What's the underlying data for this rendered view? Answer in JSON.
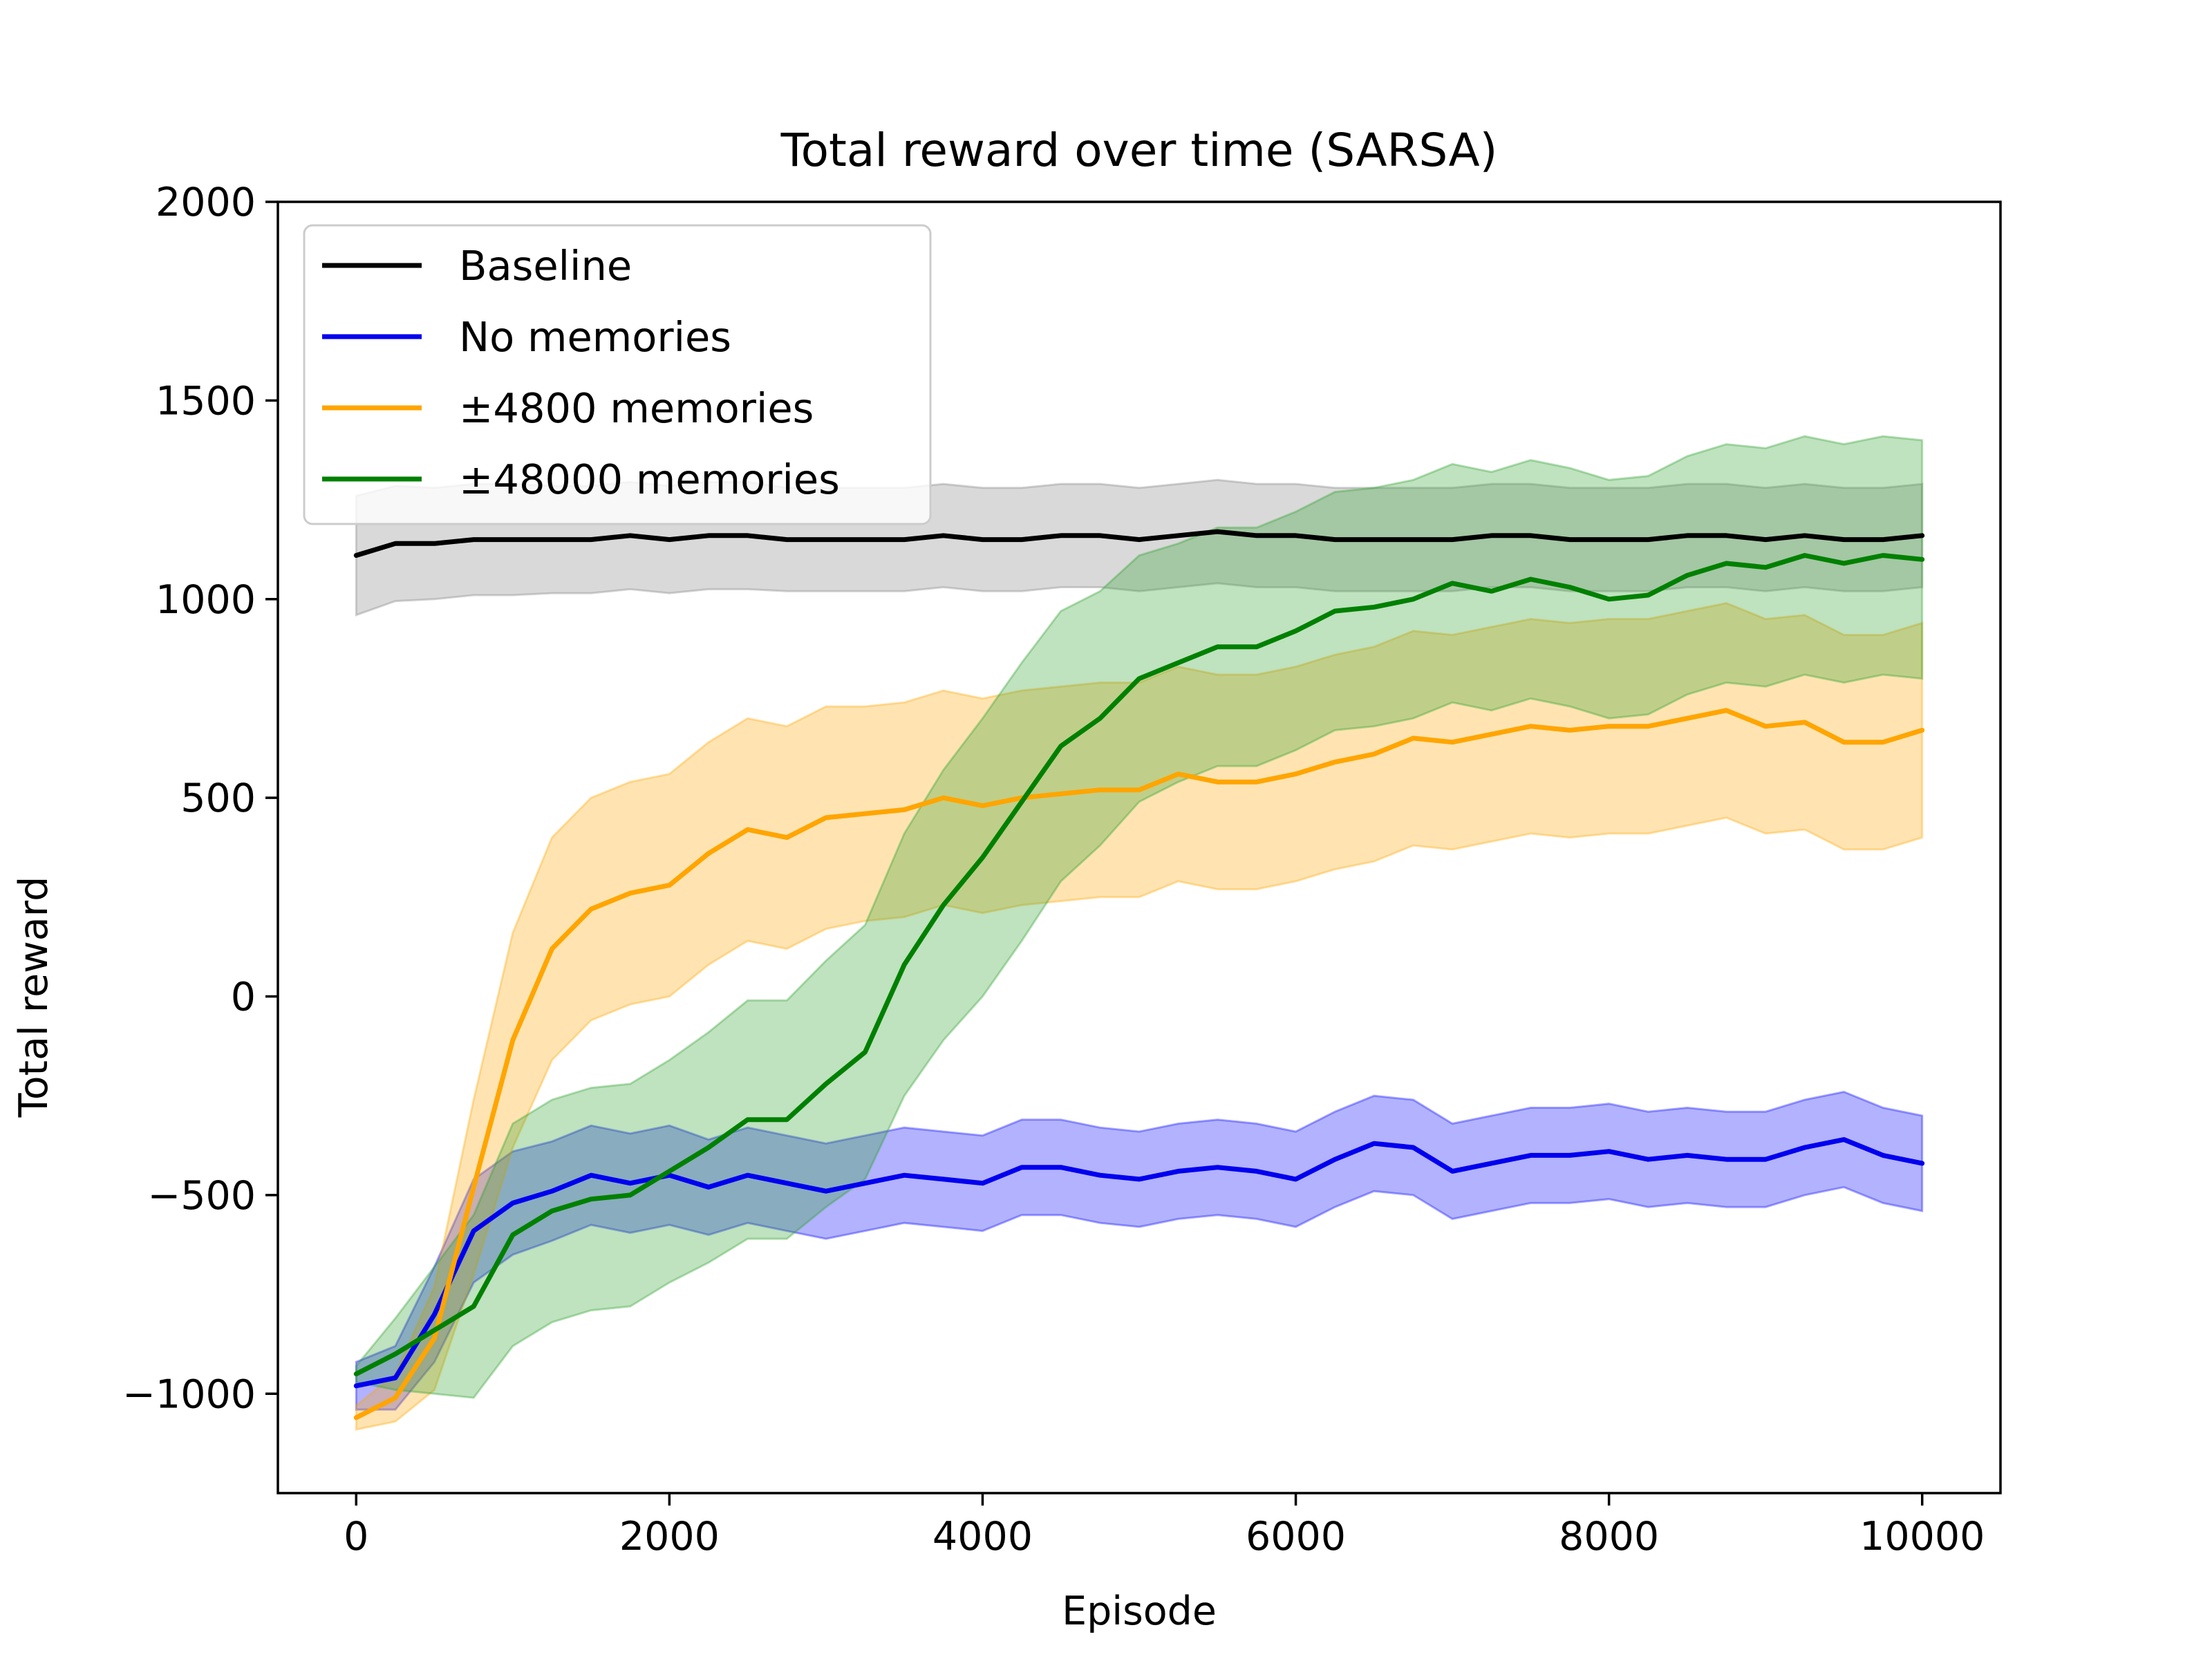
{
  "chart_data": {
    "type": "line",
    "title": "Total reward over time (SARSA)",
    "xlabel": "Episode",
    "ylabel": "Total reward",
    "xlim": [
      -500,
      10500
    ],
    "ylim": [
      -1250,
      2000
    ],
    "xticks": [
      0,
      2000,
      4000,
      6000,
      8000,
      10000
    ],
    "yticks": [
      -1000,
      -500,
      0,
      500,
      1000,
      1500,
      2000
    ],
    "xtick_labels": [
      "0",
      "2000",
      "4000",
      "6000",
      "8000",
      "10000"
    ],
    "ytick_labels": [
      "−1000",
      "−500",
      "0",
      "500",
      "1000",
      "1500",
      "2000"
    ],
    "grid": false,
    "legend_position": "top-left",
    "x": [
      0,
      250,
      500,
      750,
      1000,
      1250,
      1500,
      1750,
      2000,
      2250,
      2500,
      2750,
      3000,
      3250,
      3500,
      3750,
      4000,
      4250,
      4500,
      4750,
      5000,
      5250,
      5500,
      5750,
      6000,
      6250,
      6500,
      6750,
      7000,
      7250,
      7500,
      7750,
      8000,
      8250,
      8500,
      8750,
      9000,
      9250,
      9500,
      9750,
      10000
    ],
    "series": [
      {
        "name": "Baseline",
        "color": "#000000",
        "band_color": "#808080",
        "y": [
          1110,
          1140,
          1140,
          1150,
          1150,
          1150,
          1150,
          1160,
          1150,
          1160,
          1160,
          1150,
          1150,
          1150,
          1150,
          1160,
          1150,
          1150,
          1160,
          1160,
          1150,
          1160,
          1170,
          1160,
          1160,
          1150,
          1150,
          1150,
          1150,
          1160,
          1160,
          1150,
          1150,
          1150,
          1160,
          1160,
          1150,
          1160,
          1150,
          1150,
          1160
        ],
        "band": [
          150,
          145,
          140,
          140,
          140,
          135,
          135,
          135,
          135,
          135,
          135,
          130,
          130,
          130,
          130,
          130,
          130,
          130,
          130,
          130,
          130,
          130,
          130,
          130,
          130,
          130,
          130,
          130,
          130,
          130,
          130,
          130,
          130,
          130,
          130,
          130,
          130,
          130,
          130,
          130,
          130
        ]
      },
      {
        "name": "No memories",
        "color": "#0000ee",
        "band_color": "#0000ff",
        "y": [
          -980,
          -960,
          -800,
          -590,
          -520,
          -490,
          -450,
          -470,
          -450,
          -480,
          -450,
          -470,
          -490,
          -470,
          -450,
          -460,
          -470,
          -430,
          -430,
          -450,
          -460,
          -440,
          -430,
          -440,
          -460,
          -410,
          -370,
          -380,
          -440,
          -420,
          -400,
          -400,
          -390,
          -410,
          -400,
          -410,
          -410,
          -380,
          -360,
          -400,
          -420
        ],
        "band": [
          60,
          80,
          120,
          130,
          130,
          125,
          125,
          125,
          125,
          120,
          120,
          120,
          120,
          120,
          120,
          120,
          120,
          120,
          120,
          120,
          120,
          120,
          120,
          120,
          120,
          120,
          120,
          120,
          120,
          120,
          120,
          120,
          120,
          120,
          120,
          120,
          120,
          120,
          120,
          120,
          120
        ]
      },
      {
        "name": "±4800 memories",
        "color": "#ffa500",
        "band_color": "#ffa500",
        "y": [
          -1060,
          -1010,
          -860,
          -480,
          -110,
          120,
          220,
          260,
          280,
          360,
          420,
          400,
          450,
          460,
          470,
          500,
          480,
          500,
          510,
          520,
          520,
          560,
          540,
          540,
          560,
          590,
          610,
          650,
          640,
          660,
          680,
          670,
          680,
          680,
          700,
          720,
          680,
          690,
          640,
          640,
          670
        ],
        "band": [
          30,
          60,
          130,
          220,
          270,
          280,
          280,
          280,
          280,
          280,
          280,
          280,
          280,
          270,
          270,
          270,
          270,
          270,
          270,
          270,
          270,
          270,
          270,
          270,
          270,
          270,
          270,
          270,
          270,
          270,
          270,
          270,
          270,
          270,
          270,
          270,
          270,
          270,
          270,
          270,
          270
        ]
      },
      {
        "name": "±48000 memories",
        "color": "#008000",
        "band_color": "#2ca02c",
        "y": [
          -950,
          -900,
          -840,
          -780,
          -600,
          -540,
          -510,
          -500,
          -440,
          -380,
          -310,
          -310,
          -220,
          -140,
          80,
          230,
          350,
          490,
          630,
          700,
          800,
          840,
          880,
          880,
          920,
          970,
          980,
          1000,
          1040,
          1020,
          1050,
          1030,
          1000,
          1010,
          1060,
          1090,
          1080,
          1110,
          1090,
          1110,
          1100
        ],
        "band": [
          20,
          90,
          160,
          230,
          280,
          280,
          280,
          280,
          280,
          290,
          300,
          300,
          310,
          320,
          330,
          340,
          350,
          350,
          340,
          320,
          310,
          300,
          300,
          300,
          300,
          300,
          300,
          300,
          300,
          300,
          300,
          300,
          300,
          300,
          300,
          300,
          300,
          300,
          300,
          300,
          300
        ]
      }
    ]
  }
}
